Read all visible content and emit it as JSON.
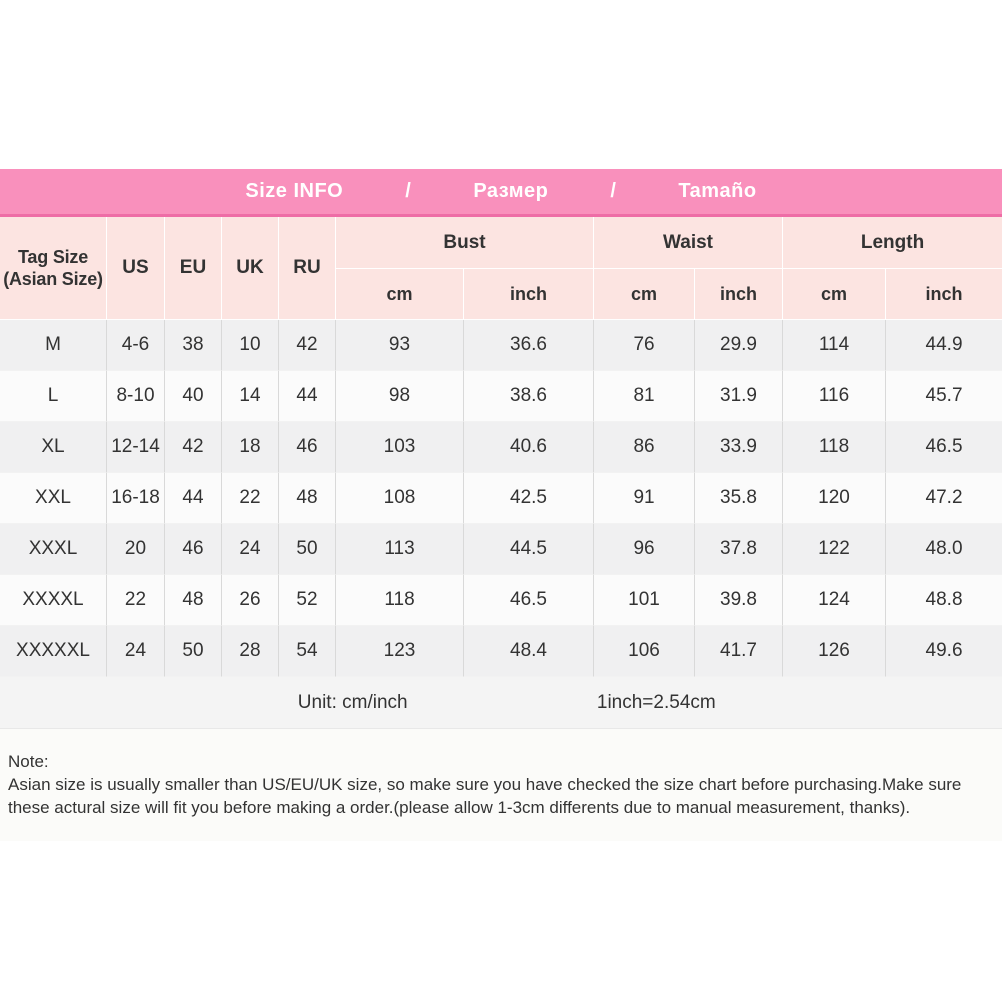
{
  "banner": {
    "title_en": "Size INFO",
    "separator1": "/",
    "title_ru": "Размер",
    "separator2": "/",
    "title_es": "Tamaño"
  },
  "table_header": {
    "corner_line1": "Tag Size",
    "corner_line2": "(Asian Size)",
    "regions": [
      "US",
      "EU",
      "UK",
      "RU"
    ],
    "groups": [
      "Bust",
      "Waist",
      "Length"
    ],
    "units": [
      "cm",
      "inch"
    ]
  },
  "chart_data": {
    "type": "table",
    "title": "Size INFO / Размер / Tamaño",
    "columns": [
      "Tag Size (Asian Size)",
      "US",
      "EU",
      "UK",
      "RU",
      "Bust cm",
      "Bust inch",
      "Waist cm",
      "Waist inch",
      "Length cm",
      "Length inch"
    ],
    "rows": [
      [
        "M",
        "4-6",
        "38",
        "10",
        "42",
        "93",
        "36.6",
        "76",
        "29.9",
        "114",
        "44.9"
      ],
      [
        "L",
        "8-10",
        "40",
        "14",
        "44",
        "98",
        "38.6",
        "81",
        "31.9",
        "116",
        "45.7"
      ],
      [
        "XL",
        "12-14",
        "42",
        "18",
        "46",
        "103",
        "40.6",
        "86",
        "33.9",
        "118",
        "46.5"
      ],
      [
        "XXL",
        "16-18",
        "44",
        "22",
        "48",
        "108",
        "42.5",
        "91",
        "35.8",
        "120",
        "47.2"
      ],
      [
        "XXXL",
        "20",
        "46",
        "24",
        "50",
        "113",
        "44.5",
        "96",
        "37.8",
        "122",
        "48.0"
      ],
      [
        "XXXXL",
        "22",
        "48",
        "26",
        "52",
        "118",
        "46.5",
        "101",
        "39.8",
        "124",
        "48.8"
      ],
      [
        "XXXXXL",
        "24",
        "50",
        "28",
        "54",
        "123",
        "48.4",
        "106",
        "41.7",
        "126",
        "49.6"
      ]
    ],
    "notes": [
      "Unit: cm/inch",
      "1inch=2.54cm"
    ]
  },
  "footer": {
    "unit_note": "Unit: cm/inch",
    "conversion_note": "1inch=2.54cm"
  },
  "note": {
    "label": "Note:",
    "line1": "Asian size is usually smaller than US/EU/UK size, so make sure you have checked the size chart before purchasing.Make sure",
    "line2": "these actural size will fit you before making a order.(please allow 1-3cm differents due to manual measurement, thanks)."
  },
  "colors": {
    "banner_pink": "#f990bc",
    "banner_edge": "#ee6da6",
    "header_pink": "#fce4e1",
    "row_gray": "#f0f0f1",
    "row_light": "#fbfbfb",
    "unit_bg": "#f4f4f4",
    "text_dark": "#333333"
  }
}
